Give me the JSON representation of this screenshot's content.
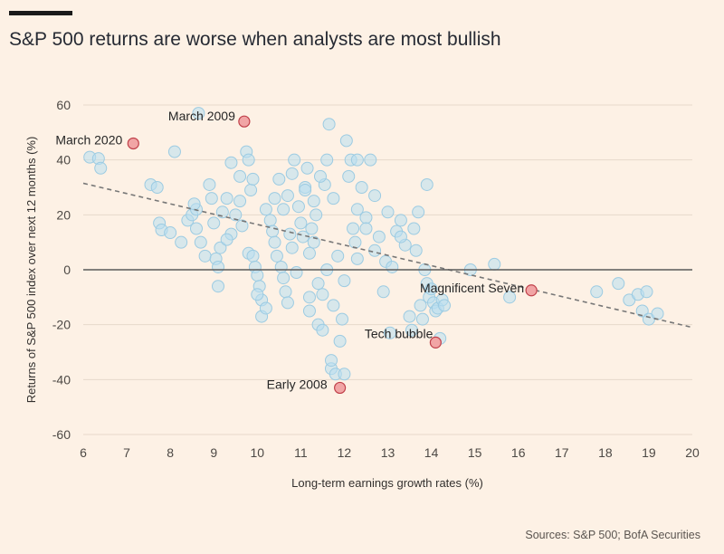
{
  "title": "S&P 500 returns are worse when analysts are most bullish",
  "source": "Sources: S&P 500; BofA Securities",
  "colors": {
    "background": "#fdf1e5",
    "point_fill": "#b8dff0",
    "point_stroke": "#9ccbe2",
    "highlight_fill": "#f1a5a5",
    "highlight_stroke": "#c0404a",
    "trend": "#777777",
    "zero_line": "#5a5a5a"
  },
  "chart_data": {
    "type": "scatter",
    "xlabel": "Long-term earnings growth rates (%)",
    "ylabel": "Returns of S&P 500 index over next 12 months (%)",
    "xlim": [
      6,
      20
    ],
    "ylim": [
      -60,
      60
    ],
    "x_ticks": [
      6,
      7,
      8,
      9,
      10,
      11,
      12,
      13,
      14,
      15,
      16,
      17,
      18,
      19,
      20
    ],
    "y_ticks": [
      60,
      40,
      20,
      0,
      -20,
      -40,
      -60
    ],
    "grid": "horizontal",
    "trend_line": {
      "x": [
        6,
        20
      ],
      "y": [
        31.5,
        -21
      ]
    },
    "highlighted": [
      {
        "label": "March 2020",
        "x": 7.15,
        "y": 46
      },
      {
        "label": "March 2009",
        "x": 9.7,
        "y": 54
      },
      {
        "label": "Magnificent Seven",
        "x": 16.3,
        "y": -7.5
      },
      {
        "label": "Tech bubble",
        "x": 14.1,
        "y": -26.5
      },
      {
        "label": "Early 2008",
        "x": 11.9,
        "y": -43
      }
    ],
    "points": [
      [
        6.15,
        41
      ],
      [
        6.35,
        40.5
      ],
      [
        6.4,
        37
      ],
      [
        7.55,
        31
      ],
      [
        7.7,
        30
      ],
      [
        7.75,
        17
      ],
      [
        7.8,
        14.5
      ],
      [
        8.0,
        13.5
      ],
      [
        8.1,
        43
      ],
      [
        8.25,
        10
      ],
      [
        8.4,
        18
      ],
      [
        8.5,
        20
      ],
      [
        8.6,
        22
      ],
      [
        8.55,
        24
      ],
      [
        8.65,
        57
      ],
      [
        8.7,
        10
      ],
      [
        8.8,
        5
      ],
      [
        8.9,
        31
      ],
      [
        8.95,
        26
      ],
      [
        9.0,
        17
      ],
      [
        9.05,
        4
      ],
      [
        9.1,
        1
      ],
      [
        9.15,
        8
      ],
      [
        9.1,
        -6
      ],
      [
        9.2,
        21
      ],
      [
        9.3,
        26
      ],
      [
        9.4,
        39
      ],
      [
        9.4,
        13
      ],
      [
        9.5,
        20
      ],
      [
        9.6,
        25
      ],
      [
        9.65,
        16
      ],
      [
        9.75,
        43
      ],
      [
        9.8,
        40
      ],
      [
        9.85,
        29
      ],
      [
        9.9,
        33
      ],
      [
        9.8,
        6
      ],
      [
        9.9,
        5
      ],
      [
        9.95,
        1
      ],
      [
        10.0,
        -2
      ],
      [
        10.05,
        -6
      ],
      [
        10.1,
        -11
      ],
      [
        10.1,
        -17
      ],
      [
        10.2,
        22
      ],
      [
        10.3,
        18
      ],
      [
        10.35,
        14
      ],
      [
        10.4,
        10
      ],
      [
        10.45,
        5
      ],
      [
        10.5,
        33
      ],
      [
        10.55,
        1
      ],
      [
        10.6,
        -3
      ],
      [
        10.65,
        -8
      ],
      [
        10.7,
        27
      ],
      [
        10.75,
        13
      ],
      [
        10.8,
        8
      ],
      [
        10.85,
        40
      ],
      [
        10.9,
        -1
      ],
      [
        10.95,
        23
      ],
      [
        11.0,
        17
      ],
      [
        11.05,
        12
      ],
      [
        11.1,
        30
      ],
      [
        11.15,
        37
      ],
      [
        11.2,
        6
      ],
      [
        11.25,
        15
      ],
      [
        11.3,
        10
      ],
      [
        11.35,
        20
      ],
      [
        11.4,
        -5
      ],
      [
        11.4,
        -20
      ],
      [
        11.5,
        -22
      ],
      [
        11.5,
        -9
      ],
      [
        11.55,
        31
      ],
      [
        11.6,
        40
      ],
      [
        11.65,
        53
      ],
      [
        11.7,
        -36
      ],
      [
        11.7,
        -33
      ],
      [
        11.75,
        -13
      ],
      [
        11.75,
        26
      ],
      [
        11.8,
        -38
      ],
      [
        11.85,
        5
      ],
      [
        11.9,
        -26
      ],
      [
        11.95,
        -18
      ],
      [
        12.0,
        -38
      ],
      [
        12.05,
        47
      ],
      [
        12.1,
        34
      ],
      [
        12.15,
        40
      ],
      [
        12.2,
        15
      ],
      [
        12.25,
        10
      ],
      [
        12.3,
        22
      ],
      [
        12.4,
        30
      ],
      [
        12.5,
        19
      ],
      [
        12.6,
        40
      ],
      [
        12.7,
        27
      ],
      [
        12.8,
        12
      ],
      [
        12.9,
        -8
      ],
      [
        12.95,
        3
      ],
      [
        13.0,
        21
      ],
      [
        13.05,
        -23
      ],
      [
        13.1,
        1
      ],
      [
        13.2,
        14
      ],
      [
        13.3,
        18
      ],
      [
        13.4,
        9
      ],
      [
        13.5,
        -17
      ],
      [
        13.55,
        -22
      ],
      [
        13.6,
        15
      ],
      [
        13.65,
        7
      ],
      [
        13.7,
        21
      ],
      [
        13.75,
        -13
      ],
      [
        13.8,
        -18
      ],
      [
        13.85,
        0
      ],
      [
        13.9,
        31
      ],
      [
        13.9,
        -5
      ],
      [
        13.95,
        -10
      ],
      [
        14.0,
        -7
      ],
      [
        14.05,
        -12
      ],
      [
        14.1,
        -15
      ],
      [
        14.15,
        -14
      ],
      [
        14.2,
        -25
      ],
      [
        14.25,
        -11
      ],
      [
        14.3,
        -13
      ],
      [
        14.9,
        0
      ],
      [
        15.45,
        2
      ],
      [
        15.8,
        -10
      ],
      [
        17.8,
        -8
      ],
      [
        18.3,
        -5
      ],
      [
        18.55,
        -11
      ],
      [
        18.75,
        -9
      ],
      [
        18.85,
        -15
      ],
      [
        18.95,
        -8
      ],
      [
        19.0,
        -18
      ],
      [
        19.2,
        -16
      ],
      [
        11.1,
        29
      ],
      [
        10.6,
        22
      ],
      [
        11.3,
        25
      ],
      [
        10.2,
        -14
      ],
      [
        11.2,
        -10
      ],
      [
        11.6,
        0
      ],
      [
        12.3,
        4
      ],
      [
        12.7,
        7
      ],
      [
        10.4,
        26
      ],
      [
        9.6,
        34
      ],
      [
        10.8,
        35
      ],
      [
        11.45,
        34
      ],
      [
        12.3,
        40
      ],
      [
        11.2,
        -15
      ],
      [
        10.0,
        -9
      ],
      [
        12.0,
        -4
      ],
      [
        10.7,
        -12
      ],
      [
        13.3,
        12
      ],
      [
        12.5,
        15
      ],
      [
        9.3,
        11
      ],
      [
        8.6,
        15
      ]
    ]
  }
}
